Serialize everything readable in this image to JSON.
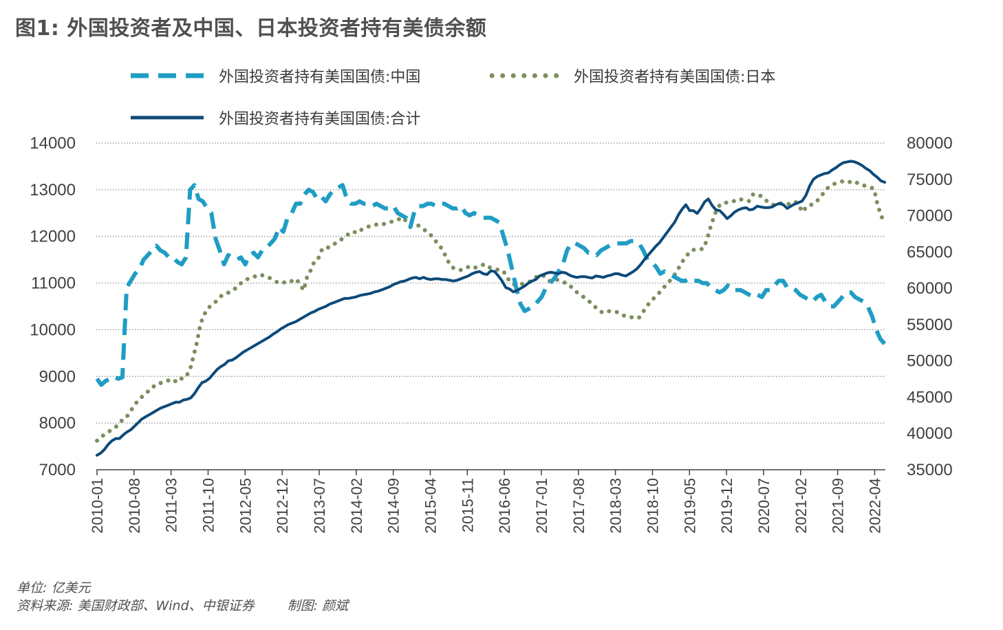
{
  "title": "图1: 外国投资者及中国、日本投资者持有美债余额",
  "legend": [
    {
      "label": "外国投资者持有美国国债:中国",
      "color": "#1f9dc4",
      "style": "dashed"
    },
    {
      "label": "外国投资者持有美国国债:日本",
      "color": "#7c8f5e",
      "style": "dotted"
    },
    {
      "label": "外国投资者持有美国国债:合计",
      "color": "#0d4a7a",
      "style": "solid"
    }
  ],
  "footer": {
    "unit": "单位: 亿美元",
    "source": "资料来源: 美国财政部、Wind、中银证券",
    "author": "制图: 颜斌"
  },
  "chart_data": {
    "type": "line",
    "x_tick_labels": [
      "2010-01",
      "2010-08",
      "2011-03",
      "2011-10",
      "2012-05",
      "2012-12",
      "2013-07",
      "2014-02",
      "2014-09",
      "2015-04",
      "2015-11",
      "2016-06",
      "2017-01",
      "2017-08",
      "2018-03",
      "2018-10",
      "2019-05",
      "2019-12",
      "2020-07",
      "2021-02",
      "2021-09",
      "2022-04"
    ],
    "y_left": {
      "ticks": [
        7000,
        8000,
        9000,
        10000,
        11000,
        12000,
        13000,
        14000
      ],
      "range": [
        7000,
        14000
      ]
    },
    "y_right": {
      "ticks": [
        35000,
        40000,
        45000,
        50000,
        55000,
        60000,
        65000,
        70000,
        75000,
        80000
      ],
      "range": [
        35000,
        80000
      ]
    },
    "grid": "horizontal dotted",
    "legend_position": "top",
    "series": [
      {
        "name": "外国投资者持有美国国债:中国",
        "axis": "left",
        "values": [
          8950,
          8820,
          8900,
          8950,
          9000,
          8950,
          8980,
          10900,
          11050,
          11200,
          11300,
          11500,
          11600,
          11700,
          11800,
          11700,
          11650,
          11550,
          11550,
          11450,
          11400,
          11550,
          13000,
          13100,
          12800,
          12750,
          12600,
          12500,
          11950,
          11700,
          11400,
          11600,
          11550,
          11500,
          11550,
          11400,
          11600,
          11650,
          11550,
          11700,
          11750,
          11850,
          11950,
          12200,
          12100,
          12400,
          12500,
          12700,
          12700,
          12900,
          13000,
          12950,
          12800,
          12850,
          12750,
          12900,
          13000,
          13050,
          13100,
          12800,
          12700,
          12700,
          12750,
          12700,
          12700,
          12650,
          12700,
          12650,
          12600,
          12600,
          12650,
          12500,
          12450,
          12400,
          12200,
          12550,
          12650,
          12650,
          12700,
          12700,
          12650,
          12700,
          12700,
          12650,
          12600,
          12600,
          12650,
          12500,
          12450,
          12500,
          12450,
          12400,
          12400,
          12400,
          12350,
          12300,
          12000,
          11700,
          11300,
          10900,
          10550,
          10400,
          10450,
          10500,
          10600,
          10700,
          10900,
          11000,
          11100,
          11250,
          11400,
          11700,
          11850,
          11850,
          11800,
          11750,
          11650,
          11650,
          11600,
          11700,
          11750,
          11800,
          11850,
          11850,
          11850,
          11850,
          11900,
          11900,
          11850,
          11700,
          11500,
          11450,
          11350,
          11200,
          11250,
          11200,
          11150,
          11100,
          11050,
          11050,
          11100,
          11050,
          11050,
          11000,
          11000,
          10900,
          10850,
          10800,
          10850,
          10950,
          10850,
          10850,
          10850,
          10800,
          10750,
          10700,
          10750,
          10700,
          10850,
          10850,
          10950,
          11050,
          11050,
          10900,
          10900,
          10850,
          10750,
          10700,
          10650,
          10600,
          10700,
          10750,
          10600,
          10500,
          10500,
          10600,
          10700,
          10800,
          10800,
          10700,
          10650,
          10600,
          10500,
          10300,
          10000,
          9800,
          9700
        ]
      },
      {
        "name": "外国投资者持有美国国债:日本",
        "axis": "right",
        "values": [
          39000,
          39500,
          39800,
          40100,
          40500,
          40800,
          41200,
          41800,
          42000,
          42800,
          43500,
          44200,
          44800,
          45200,
          45600,
          46200,
          46500,
          46600,
          47000,
          47200,
          47300,
          47500,
          47200,
          47700,
          47500,
          47900,
          48600,
          50500,
          52500,
          55000,
          56300,
          57200,
          57600,
          58000,
          58500,
          59000,
          59300,
          59400,
          59800,
          60000,
          60500,
          61000,
          61200,
          61500,
          61600,
          61700,
          61900,
          61600,
          61500,
          61300,
          61000,
          60700,
          60700,
          60900,
          61100,
          60900,
          61200,
          60500,
          59700,
          61700,
          62500,
          63700,
          64000,
          65200,
          65700,
          65600,
          66000,
          66200,
          66500,
          66900,
          67200,
          67700,
          67800,
          67600,
          68000,
          68300,
          68500,
          68500,
          68700,
          68900,
          68800,
          68900,
          69100,
          69200,
          69300,
          69600,
          69200,
          69600,
          69200,
          69100,
          68700,
          68300,
          68000,
          67500,
          67200,
          66500,
          66000,
          65200,
          64300,
          63200,
          62800,
          62600,
          62500,
          62800,
          62900,
          63000,
          62800,
          63100,
          63200,
          63300,
          62900,
          62700,
          62600,
          62500,
          62400,
          61500,
          60900,
          60500,
          60600,
          60600,
          60600,
          60800,
          61100,
          61500,
          61700,
          61800,
          61500,
          61000,
          61200,
          61200,
          60900,
          60800,
          60700,
          60200,
          59700,
          59300,
          59000,
          58600,
          58200,
          57900,
          57300,
          56900,
          56600,
          56700,
          56900,
          56800,
          56700,
          56400,
          56200,
          56200,
          56000,
          55900,
          55900,
          56600,
          57300,
          58000,
          58500,
          59000,
          59500,
          60100,
          60600,
          61200,
          61800,
          62600,
          63500,
          64200,
          64800,
          65300,
          65300,
          65400,
          65400,
          66500,
          68200,
          69700,
          71000,
          71600,
          71800,
          71800,
          72000,
          72000,
          72300,
          72200,
          72000,
          72000,
          72900,
          73000,
          72800,
          72300,
          72000,
          71800,
          71400,
          71500,
          71700,
          71600,
          71600,
          71900,
          71900,
          71300,
          70500,
          71200,
          71300,
          71800,
          72000,
          72600,
          73200,
          73800,
          74200,
          74400,
          74600,
          74700,
          74800,
          74600,
          74800,
          74600,
          74300,
          74200,
          74000,
          73900,
          73700,
          71500,
          70000,
          69000
        ]
      },
      {
        "name": "外国投资者持有美国国债:合计",
        "axis": "right",
        "values": [
          37000,
          37300,
          37800,
          38500,
          39000,
          39300,
          39300,
          39800,
          40200,
          40500,
          41000,
          41500,
          42000,
          42300,
          42600,
          42900,
          43200,
          43500,
          43700,
          43900,
          44100,
          44300,
          44300,
          44600,
          44700,
          44900,
          45500,
          46300,
          47000,
          47200,
          47600,
          48200,
          48800,
          49200,
          49500,
          50000,
          50100,
          50400,
          50800,
          51200,
          51500,
          51800,
          52100,
          52400,
          52700,
          53000,
          53300,
          53700,
          54000,
          54400,
          54700,
          55000,
          55200,
          55400,
          55700,
          56000,
          56300,
          56600,
          56800,
          57100,
          57300,
          57500,
          57800,
          58000,
          58200,
          58400,
          58600,
          58600,
          58700,
          58800,
          59000,
          59100,
          59200,
          59300,
          59500,
          59600,
          59800,
          60000,
          60200,
          60500,
          60700,
          60900,
          61000,
          61200,
          61400,
          61500,
          61300,
          61500,
          61300,
          61200,
          61300,
          61300,
          61200,
          61200,
          61100,
          61000,
          61100,
          61300,
          61500,
          61700,
          62000,
          62200,
          62300,
          62000,
          61900,
          62400,
          62300,
          61700,
          61000,
          60100,
          59900,
          59500,
          59700,
          60000,
          60300,
          60700,
          61000,
          61200,
          61700,
          61900,
          62100,
          62200,
          62100,
          62000,
          62200,
          62100,
          61800,
          61600,
          61500,
          61600,
          61600,
          61500,
          61400,
          61700,
          61600,
          61500,
          61700,
          61800,
          62000,
          62000,
          61800,
          61700,
          62000,
          62300,
          62700,
          63300,
          64000,
          64600,
          65200,
          65800,
          66300,
          67000,
          67700,
          68400,
          69100,
          70100,
          70900,
          71500,
          70700,
          70700,
          70300,
          71000,
          71900,
          72300,
          71400,
          70800,
          70700,
          70200,
          69600,
          70000,
          70500,
          70800,
          71000,
          71100,
          70800,
          70900,
          71300,
          71200,
          71100,
          71100,
          71200,
          71500,
          71700,
          71500,
          71000,
          71300,
          71600,
          71800,
          72000,
          72800,
          74100,
          75000,
          75400,
          75600,
          75800,
          75900,
          76300,
          76600,
          77000,
          77300,
          77400,
          77500,
          77400,
          77200,
          76900,
          76500,
          76200,
          75700,
          75300,
          74800,
          74600
        ]
      }
    ]
  }
}
